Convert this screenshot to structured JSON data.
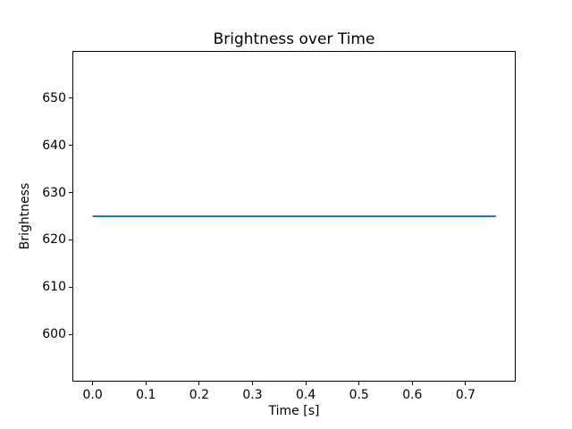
{
  "figure": {
    "background": "#ffffff",
    "spine_color": "#000000",
    "text_color": "#000000"
  },
  "chart_data": {
    "type": "line",
    "title": "Brightness over Time",
    "xlabel": "Time [s]",
    "ylabel": "Brightness",
    "xlim": [
      -0.038,
      0.794
    ],
    "ylim": [
      590,
      660
    ],
    "x_ticks": [
      0.0,
      0.1,
      0.2,
      0.3,
      0.4,
      0.5,
      0.6,
      0.7
    ],
    "x_tick_labels": [
      "0.0",
      "0.1",
      "0.2",
      "0.3",
      "0.4",
      "0.5",
      "0.6",
      "0.7"
    ],
    "y_ticks": [
      600,
      610,
      620,
      630,
      640,
      650
    ],
    "y_tick_labels": [
      "600",
      "610",
      "620",
      "630",
      "640",
      "650"
    ],
    "grid": false,
    "legend": null,
    "series": [
      {
        "name": "brightness",
        "color": "#1f77b4",
        "line_width": 2,
        "x": [
          0.0,
          0.757
        ],
        "y": [
          625,
          625
        ]
      }
    ]
  }
}
